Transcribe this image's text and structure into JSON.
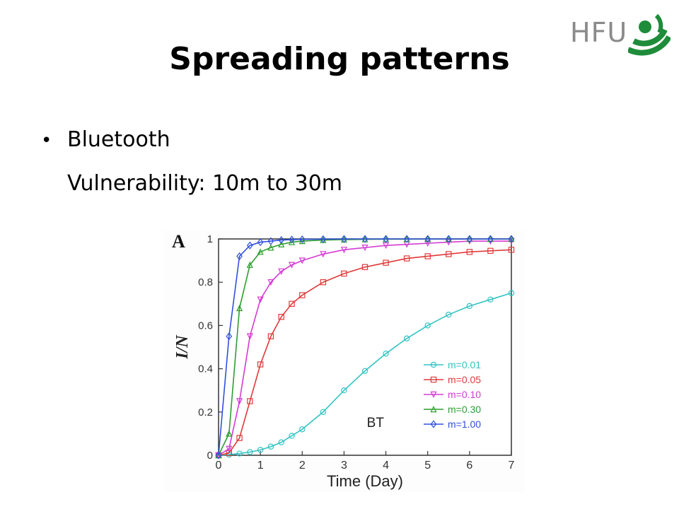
{
  "logo": {
    "text": "HFU"
  },
  "slide": {
    "title": "Spreading patterns",
    "bullet": "Bluetooth",
    "detail": "Vulnerability:  10m to 30m"
  },
  "chart_data": {
    "type": "line",
    "panel_label": "A",
    "xlabel": "Time (Day)",
    "ylabel": "I/N",
    "xlim": [
      0,
      7
    ],
    "ylim": [
      0,
      1
    ],
    "xticks": [
      "0",
      "1",
      "2",
      "3",
      "4",
      "5",
      "6",
      "7"
    ],
    "yticks": [
      "0",
      "0.2",
      "0.4",
      "0.6",
      "0.8",
      "1"
    ],
    "annotation": "BT",
    "legend_position": "bottom-right",
    "x": [
      0,
      0.25,
      0.5,
      0.75,
      1,
      1.25,
      1.5,
      1.75,
      2,
      2.5,
      3,
      3.5,
      4,
      4.5,
      5,
      5.5,
      6,
      6.5,
      7
    ],
    "series": [
      {
        "name": "m=0.01",
        "color": "#33c3c3",
        "marker": "circle",
        "values": [
          0,
          0.003,
          0.008,
          0.015,
          0.025,
          0.04,
          0.06,
          0.09,
          0.12,
          0.2,
          0.3,
          0.39,
          0.47,
          0.54,
          0.6,
          0.65,
          0.69,
          0.72,
          0.75
        ]
      },
      {
        "name": "m=0.05",
        "color": "#e03a3a",
        "marker": "square",
        "values": [
          0,
          0.01,
          0.08,
          0.25,
          0.42,
          0.55,
          0.64,
          0.7,
          0.74,
          0.8,
          0.84,
          0.87,
          0.89,
          0.91,
          0.92,
          0.93,
          0.94,
          0.945,
          0.95
        ]
      },
      {
        "name": "m=0.10",
        "color": "#d43ad4",
        "marker": "triangle-down",
        "values": [
          0,
          0.03,
          0.25,
          0.55,
          0.72,
          0.8,
          0.85,
          0.88,
          0.9,
          0.93,
          0.95,
          0.96,
          0.97,
          0.975,
          0.98,
          0.985,
          0.99,
          0.99,
          0.99
        ]
      },
      {
        "name": "m=0.30",
        "color": "#2e9e2e",
        "marker": "triangle-up",
        "values": [
          0,
          0.1,
          0.68,
          0.88,
          0.94,
          0.96,
          0.975,
          0.985,
          0.99,
          0.995,
          0.997,
          0.998,
          0.999,
          0.999,
          1,
          1,
          1,
          1,
          1
        ]
      },
      {
        "name": "m=1.00",
        "color": "#3050dd",
        "marker": "diamond",
        "values": [
          0,
          0.55,
          0.92,
          0.97,
          0.985,
          0.99,
          0.995,
          0.997,
          0.998,
          0.999,
          1,
          1,
          1,
          1,
          1,
          1,
          1,
          1,
          1
        ]
      }
    ]
  }
}
